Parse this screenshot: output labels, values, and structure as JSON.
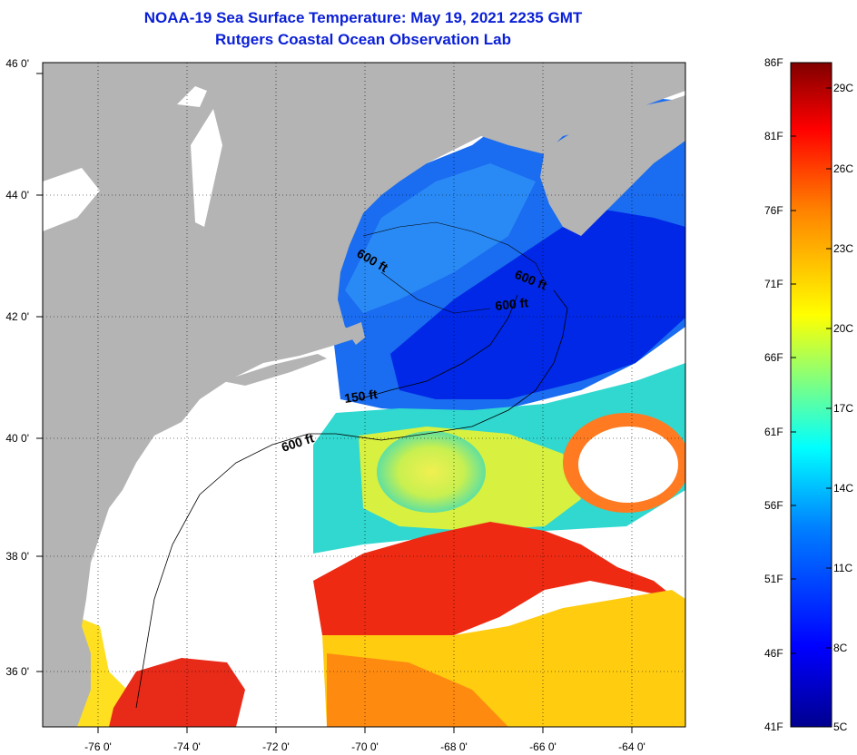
{
  "header": {
    "title": "NOAA-19 Sea Surface Temperature:  May 19, 2021 2235 GMT",
    "subtitle": "Rutgers Coastal Ocean Observation Lab"
  },
  "map": {
    "lat_labels": [
      "46 0'",
      "44 0'",
      "42 0'",
      "40 0'",
      "38 0'",
      "36 0'"
    ],
    "lon_labels": [
      "-76 0'",
      "-74 0'",
      "-72 0'",
      "-70 0'",
      "-68 0'",
      "-66 0'",
      "-64 0'"
    ],
    "contour_labels": [
      "600 ft",
      "600 ft",
      "600 ft",
      "150 ft",
      "600 ft"
    ],
    "colors": {
      "land": "#b4b4b4",
      "cloud": "#ffffff",
      "grid": "#000000"
    }
  },
  "colorbar": {
    "fahrenheit_ticks": [
      "86F",
      "81F",
      "76F",
      "71F",
      "66F",
      "61F",
      "56F",
      "51F",
      "46F",
      "41F"
    ],
    "celsius_ticks": [
      "29C",
      "26C",
      "23C",
      "20C",
      "17C",
      "14C",
      "11C",
      "8C",
      "5C"
    ],
    "colors": [
      "#00008f",
      "#0000ff",
      "#0080ff",
      "#00ffff",
      "#80ff80",
      "#ffff00",
      "#ff8000",
      "#ff0000",
      "#800000"
    ]
  }
}
